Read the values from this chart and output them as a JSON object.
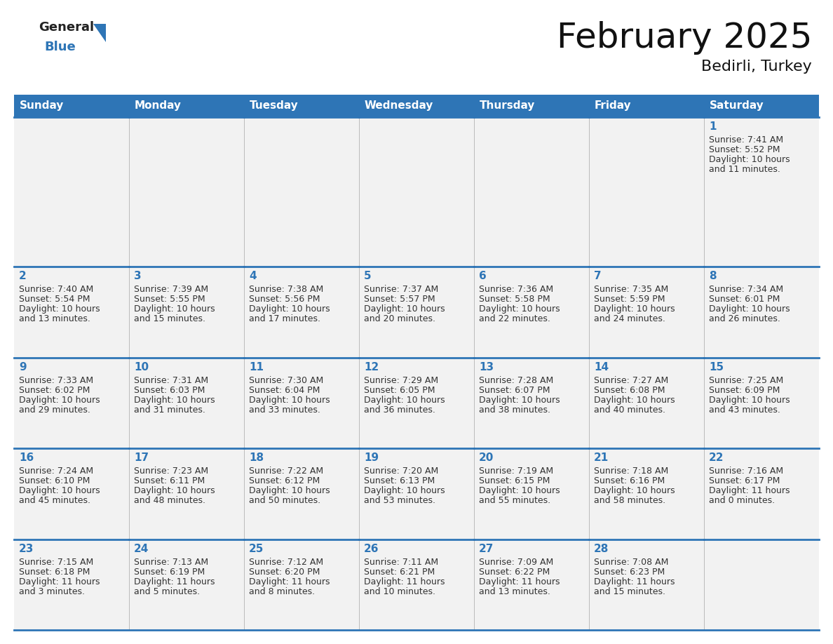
{
  "title": "February 2025",
  "subtitle": "Bedirli, Turkey",
  "header_bg": "#2E75B6",
  "header_text_color": "#FFFFFF",
  "cell_border_color": "#2E75B6",
  "cell_bg_color": "#F2F2F2",
  "day_number_color": "#2E75B6",
  "info_text_color": "#333333",
  "days_of_week": [
    "Sunday",
    "Monday",
    "Tuesday",
    "Wednesday",
    "Thursday",
    "Friday",
    "Saturday"
  ],
  "background_color": "#FFFFFF",
  "calendar_data": [
    [
      null,
      null,
      null,
      null,
      null,
      null,
      {
        "day": 1,
        "sunrise": "7:41 AM",
        "sunset": "5:52 PM",
        "daylight": "10 hours\nand 11 minutes."
      }
    ],
    [
      {
        "day": 2,
        "sunrise": "7:40 AM",
        "sunset": "5:54 PM",
        "daylight": "10 hours\nand 13 minutes."
      },
      {
        "day": 3,
        "sunrise": "7:39 AM",
        "sunset": "5:55 PM",
        "daylight": "10 hours\nand 15 minutes."
      },
      {
        "day": 4,
        "sunrise": "7:38 AM",
        "sunset": "5:56 PM",
        "daylight": "10 hours\nand 17 minutes."
      },
      {
        "day": 5,
        "sunrise": "7:37 AM",
        "sunset": "5:57 PM",
        "daylight": "10 hours\nand 20 minutes."
      },
      {
        "day": 6,
        "sunrise": "7:36 AM",
        "sunset": "5:58 PM",
        "daylight": "10 hours\nand 22 minutes."
      },
      {
        "day": 7,
        "sunrise": "7:35 AM",
        "sunset": "5:59 PM",
        "daylight": "10 hours\nand 24 minutes."
      },
      {
        "day": 8,
        "sunrise": "7:34 AM",
        "sunset": "6:01 PM",
        "daylight": "10 hours\nand 26 minutes."
      }
    ],
    [
      {
        "day": 9,
        "sunrise": "7:33 AM",
        "sunset": "6:02 PM",
        "daylight": "10 hours\nand 29 minutes."
      },
      {
        "day": 10,
        "sunrise": "7:31 AM",
        "sunset": "6:03 PM",
        "daylight": "10 hours\nand 31 minutes."
      },
      {
        "day": 11,
        "sunrise": "7:30 AM",
        "sunset": "6:04 PM",
        "daylight": "10 hours\nand 33 minutes."
      },
      {
        "day": 12,
        "sunrise": "7:29 AM",
        "sunset": "6:05 PM",
        "daylight": "10 hours\nand 36 minutes."
      },
      {
        "day": 13,
        "sunrise": "7:28 AM",
        "sunset": "6:07 PM",
        "daylight": "10 hours\nand 38 minutes."
      },
      {
        "day": 14,
        "sunrise": "7:27 AM",
        "sunset": "6:08 PM",
        "daylight": "10 hours\nand 40 minutes."
      },
      {
        "day": 15,
        "sunrise": "7:25 AM",
        "sunset": "6:09 PM",
        "daylight": "10 hours\nand 43 minutes."
      }
    ],
    [
      {
        "day": 16,
        "sunrise": "7:24 AM",
        "sunset": "6:10 PM",
        "daylight": "10 hours\nand 45 minutes."
      },
      {
        "day": 17,
        "sunrise": "7:23 AM",
        "sunset": "6:11 PM",
        "daylight": "10 hours\nand 48 minutes."
      },
      {
        "day": 18,
        "sunrise": "7:22 AM",
        "sunset": "6:12 PM",
        "daylight": "10 hours\nand 50 minutes."
      },
      {
        "day": 19,
        "sunrise": "7:20 AM",
        "sunset": "6:13 PM",
        "daylight": "10 hours\nand 53 minutes."
      },
      {
        "day": 20,
        "sunrise": "7:19 AM",
        "sunset": "6:15 PM",
        "daylight": "10 hours\nand 55 minutes."
      },
      {
        "day": 21,
        "sunrise": "7:18 AM",
        "sunset": "6:16 PM",
        "daylight": "10 hours\nand 58 minutes."
      },
      {
        "day": 22,
        "sunrise": "7:16 AM",
        "sunset": "6:17 PM",
        "daylight": "11 hours\nand 0 minutes."
      }
    ],
    [
      {
        "day": 23,
        "sunrise": "7:15 AM",
        "sunset": "6:18 PM",
        "daylight": "11 hours\nand 3 minutes."
      },
      {
        "day": 24,
        "sunrise": "7:13 AM",
        "sunset": "6:19 PM",
        "daylight": "11 hours\nand 5 minutes."
      },
      {
        "day": 25,
        "sunrise": "7:12 AM",
        "sunset": "6:20 PM",
        "daylight": "11 hours\nand 8 minutes."
      },
      {
        "day": 26,
        "sunrise": "7:11 AM",
        "sunset": "6:21 PM",
        "daylight": "11 hours\nand 10 minutes."
      },
      {
        "day": 27,
        "sunrise": "7:09 AM",
        "sunset": "6:22 PM",
        "daylight": "11 hours\nand 13 minutes."
      },
      {
        "day": 28,
        "sunrise": "7:08 AM",
        "sunset": "6:23 PM",
        "daylight": "11 hours\nand 15 minutes."
      },
      null
    ]
  ],
  "logo_general_color": "#222222",
  "logo_blue_color": "#2E75B6",
  "logo_triangle_color": "#2E75B6",
  "title_fontsize": 36,
  "subtitle_fontsize": 16,
  "header_fontsize": 11,
  "day_num_fontsize": 11,
  "info_fontsize": 9
}
